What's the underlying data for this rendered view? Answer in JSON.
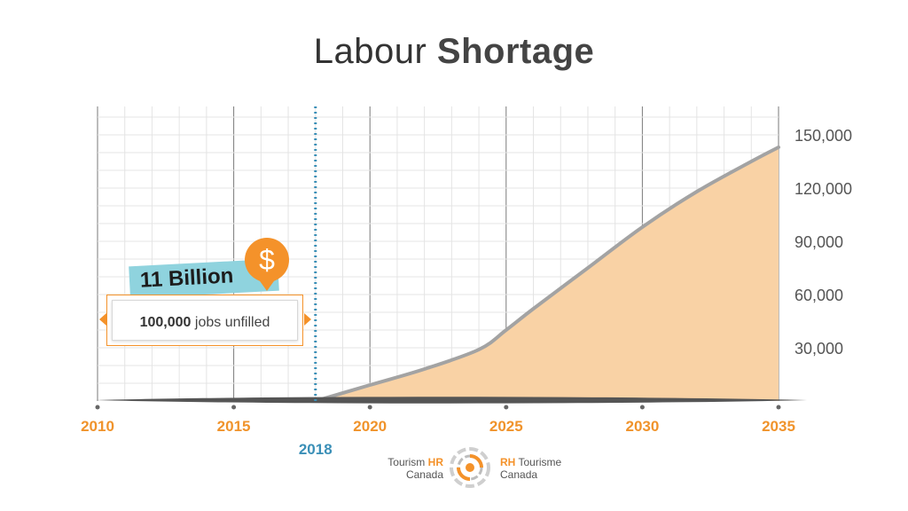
{
  "title": {
    "regular": "Labour",
    "bold": "Shortage"
  },
  "chart_data": {
    "type": "area",
    "title": "Labour Shortage",
    "x": [
      2018,
      2020,
      2022,
      2024,
      2025,
      2026,
      2028,
      2030,
      2032,
      2034,
      2035
    ],
    "y": [
      0,
      9000,
      18000,
      29000,
      40000,
      52000,
      75000,
      98000,
      118000,
      135000,
      143000
    ],
    "xlim": [
      2010,
      2035
    ],
    "ylim": [
      0,
      150000
    ],
    "x_ticks": [
      "2010",
      "2015",
      "2020",
      "2025",
      "2030",
      "2035"
    ],
    "y_ticks": [
      "30,000",
      "60,000",
      "90,000",
      "120,000",
      "150,000"
    ],
    "marker": {
      "x": 2018,
      "label": "2018"
    },
    "grid": true,
    "colors": {
      "fill": "#f9d2a5",
      "line": "#a3a3a3",
      "tick": "#f0932b",
      "marker": "#3a8fb7"
    }
  },
  "callout": {
    "amount": "11 Billion",
    "icon": "dollar-icon",
    "icon_glyph": "$",
    "jobs_number": "100,000",
    "jobs_text": "jobs unfilled"
  },
  "logo": {
    "left_prefix": "Tourism",
    "left_highlight": "HR",
    "left_sub": "Canada",
    "right_highlight": "RH",
    "right_suffix": "Tourisme",
    "right_sub": "Canada"
  }
}
